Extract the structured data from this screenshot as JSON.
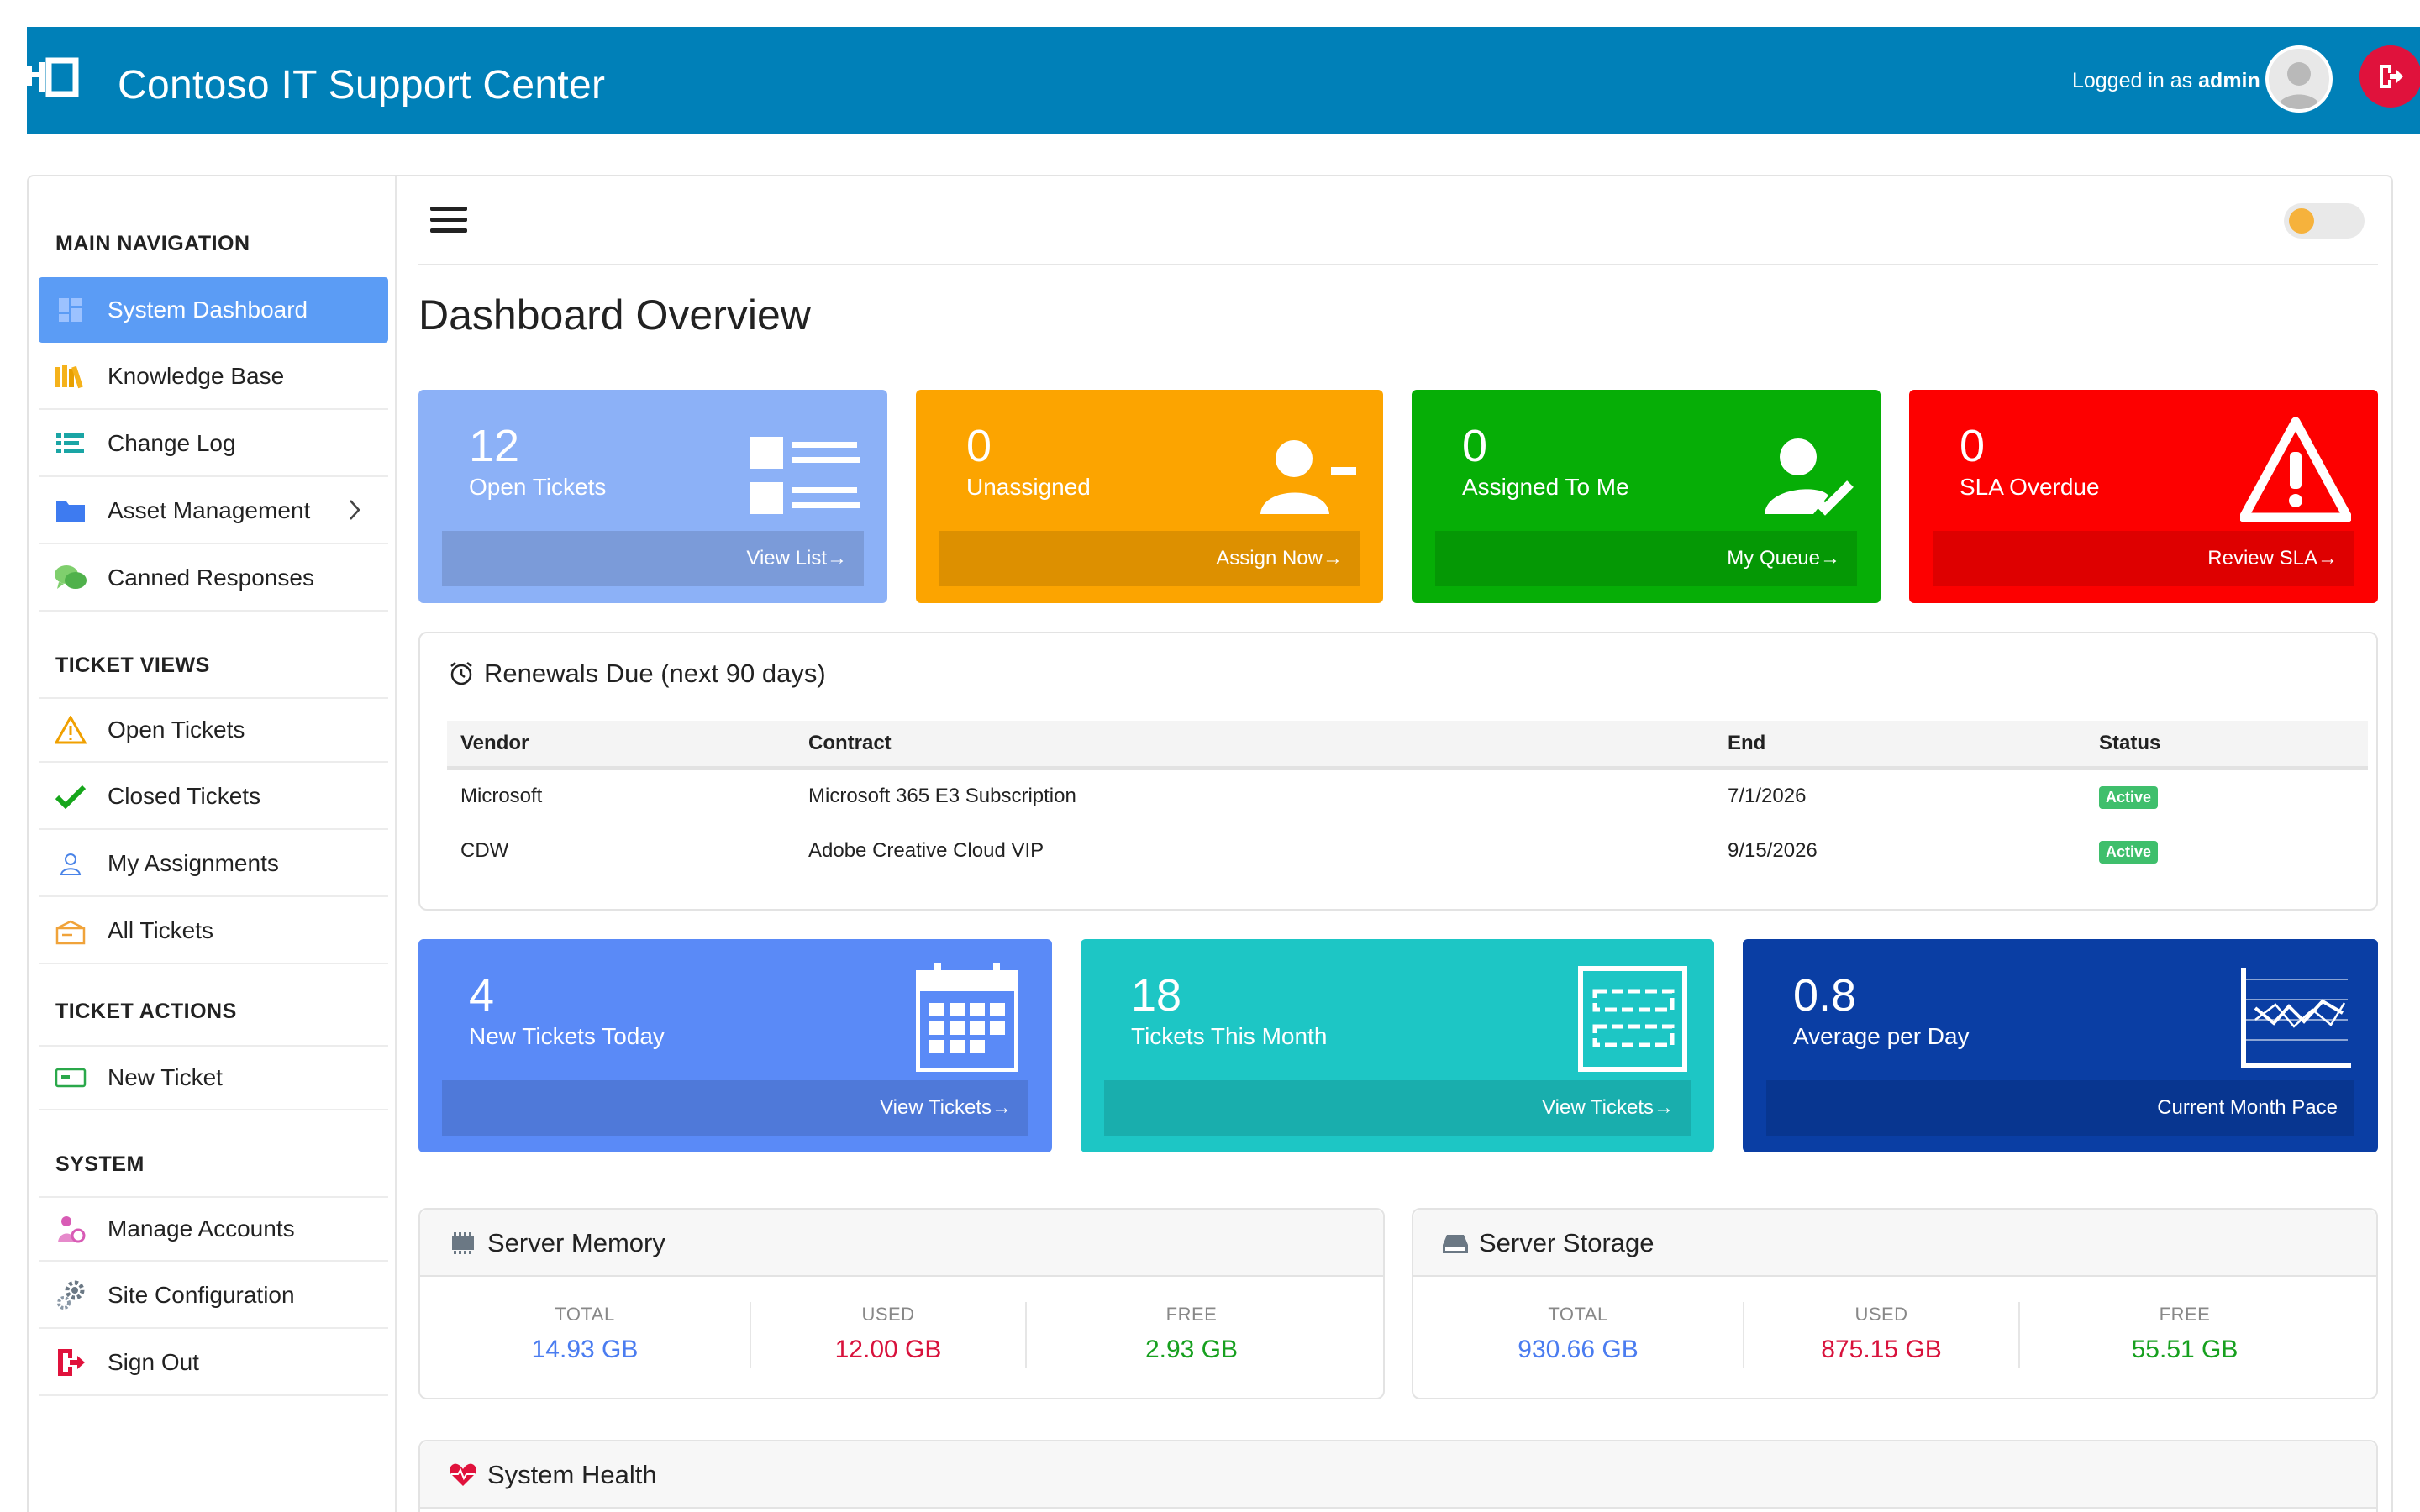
{
  "header": {
    "title": "Contoso IT Support Center",
    "login_prefix": "Logged in as",
    "username": "admin",
    "bg_color": "#0080b8"
  },
  "sidebar": {
    "sections": [
      {
        "title": "MAIN NAVIGATION"
      },
      {
        "title": "TICKET VIEWS"
      },
      {
        "title": "TICKET ACTIONS"
      },
      {
        "title": "SYSTEM"
      }
    ],
    "items": [
      {
        "label": "System Dashboard",
        "icon": "dashboard-icon",
        "active": true
      },
      {
        "label": "Knowledge Base",
        "icon": "books-icon"
      },
      {
        "label": "Change Log",
        "icon": "list-icon"
      },
      {
        "label": "Asset Management",
        "icon": "folder-icon"
      },
      {
        "label": "Canned Responses",
        "icon": "chat-icon"
      },
      {
        "label": "Open Tickets",
        "icon": "warning-icon"
      },
      {
        "label": "Closed Tickets",
        "icon": "check-icon"
      },
      {
        "label": "My Assignments",
        "icon": "user-icon"
      },
      {
        "label": "All Tickets",
        "icon": "box-icon"
      },
      {
        "label": "New Ticket",
        "icon": "ticket-icon"
      },
      {
        "label": "Manage Accounts",
        "icon": "accounts-icon"
      },
      {
        "label": "Site Configuration",
        "icon": "gear-icon"
      },
      {
        "label": "Sign Out",
        "icon": "sign-out-icon"
      }
    ]
  },
  "main": {
    "title": "Dashboard Overview",
    "cards_top": [
      {
        "value": "12",
        "label": "Open Tickets",
        "action": "View List",
        "color": "#8cb1f7"
      },
      {
        "value": "0",
        "label": "Unassigned",
        "action": "Assign Now",
        "color": "#fca400"
      },
      {
        "value": "0",
        "label": "Assigned To Me",
        "action": "My Queue",
        "color": "#06ae06"
      },
      {
        "value": "0",
        "label": "SLA Overdue",
        "action": "Review SLA",
        "color": "#fd0000"
      }
    ],
    "renewals": {
      "title": "Renewals Due (next 90 days)",
      "columns": [
        "Vendor",
        "Contract",
        "End",
        "Status"
      ],
      "rows": [
        {
          "vendor": "Microsoft",
          "contract": "Microsoft 365 E3 Subscription",
          "end": "7/1/2026",
          "status": "Active"
        },
        {
          "vendor": "CDW",
          "contract": "Adobe Creative Cloud VIP",
          "end": "9/15/2026",
          "status": "Active"
        }
      ]
    },
    "cards_mid": [
      {
        "value": "4",
        "label": "New Tickets Today",
        "action": "View Tickets",
        "color": "#5a8af7"
      },
      {
        "value": "18",
        "label": "Tickets This Month",
        "action": "View Tickets",
        "color": "#1dc6c5"
      },
      {
        "value": "0.8",
        "label": "Average per Day",
        "action": "Current Month Pace",
        "color": "#0a3ea4"
      }
    ],
    "memory": {
      "title": "Server Memory",
      "total_label": "TOTAL",
      "total": "14.93 GB",
      "used_label": "USED",
      "used": "12.00 GB",
      "free_label": "FREE",
      "free": "2.93 GB"
    },
    "storage": {
      "title": "Server Storage",
      "total_label": "TOTAL",
      "total": "930.66 GB",
      "used_label": "USED",
      "used": "875.15 GB",
      "free_label": "FREE",
      "free": "55.51 GB"
    },
    "health": {
      "title": "System Health"
    },
    "colors": {
      "total": "#4a7cf0",
      "used": "#d8123c",
      "free": "#17a01f"
    }
  }
}
